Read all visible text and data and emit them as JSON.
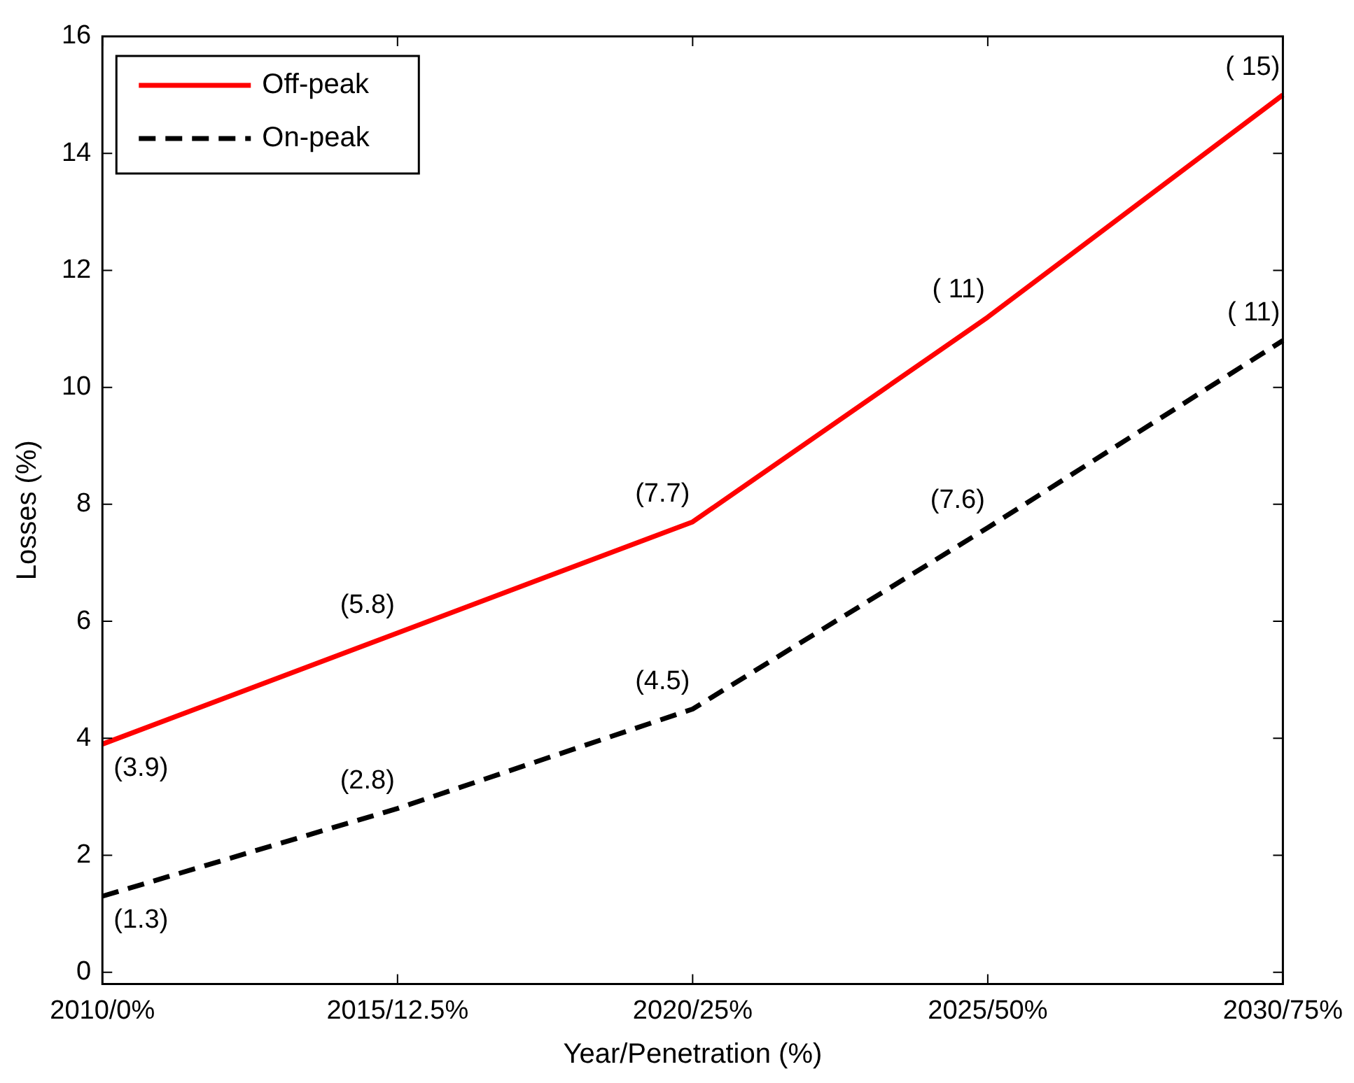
{
  "chart_data": {
    "type": "line",
    "xlabel": "Year/Penetration (%)",
    "ylabel": "Losses (%)",
    "categories": [
      "2010/0%",
      "2015/12.5%",
      "2020/25%",
      "2025/50%",
      "2030/75%"
    ],
    "series": [
      {
        "name": "Off-peak",
        "color": "#ff0000",
        "line_style": "solid",
        "values": [
          3.9,
          5.8,
          7.7,
          11.2,
          15.0
        ],
        "value_labels": [
          "(3.9)",
          "(5.8)",
          "(7.7)",
          "( 11)",
          "( 15)"
        ]
      },
      {
        "name": "On-peak",
        "color": "#000000",
        "line_style": "dashed",
        "values": [
          1.3,
          2.8,
          4.5,
          7.6,
          10.8
        ],
        "value_labels": [
          "(1.3)",
          "(2.8)",
          "(4.5)",
          "(7.6)",
          "( 11)"
        ]
      }
    ],
    "ylim": [
      -0.2,
      16
    ],
    "yticks": [
      0,
      2,
      4,
      6,
      8,
      10,
      12,
      14,
      16
    ],
    "grid": false,
    "legend": "top left",
    "marker": "none"
  }
}
